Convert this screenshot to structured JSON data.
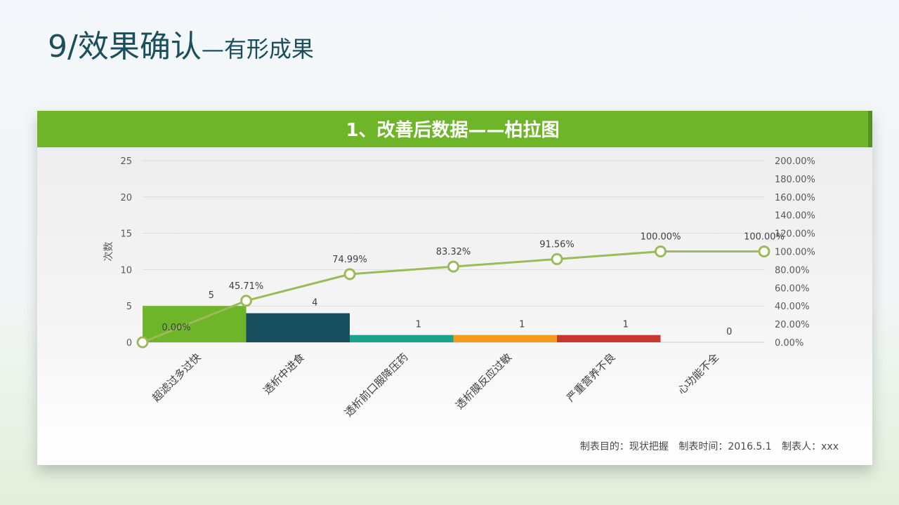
{
  "page": {
    "title_main": "9/效果确认",
    "title_sub": "—有形成果"
  },
  "card": {
    "header": "1、改善后数据——柏拉图"
  },
  "footer": {
    "purpose": "制表目的：现状把握",
    "time": "制表时间：2016.5.1",
    "maker": "制表人：xxx"
  },
  "chart_data": {
    "type": "bar",
    "subtype": "pareto",
    "categories": [
      "超滤过多过快",
      "透析中进食",
      "透析前口服降压药",
      "透析膜反应过敏",
      "严重营养不良",
      "心功能不全"
    ],
    "series": [
      {
        "type": "bar",
        "values": [
          5,
          4,
          1,
          1,
          1,
          0
        ],
        "data_labels": [
          "5",
          "4",
          "1",
          "1",
          "1",
          "0"
        ],
        "colors": [
          "#6eb52a",
          "#174f5e",
          "#1aa38b",
          "#f39c1b",
          "#c8382e",
          "#cccccc"
        ]
      },
      {
        "type": "line",
        "axis": "y2",
        "x": [
          0,
          1,
          2,
          3,
          4,
          5,
          6
        ],
        "values": [
          0,
          45.71,
          74.99,
          83.32,
          91.56,
          100,
          100
        ],
        "data_labels": [
          "0.00%",
          "45.71%",
          "74.99%",
          "83.32%",
          "91.56%",
          "100.00%",
          "100.00%"
        ],
        "color": "#9bbb59"
      }
    ],
    "ylabel": "次数",
    "ylim": [
      0,
      25
    ],
    "yticks": [
      "0",
      "5",
      "10",
      "15",
      "20",
      "25"
    ],
    "y2lim": [
      0,
      200
    ],
    "y2ticks": [
      "0.00%",
      "20.00%",
      "40.00%",
      "60.00%",
      "80.00%",
      "100.00%",
      "120.00%",
      "140.00%",
      "160.00%",
      "180.00%",
      "200.00%"
    ],
    "grid": true,
    "legend": "none"
  }
}
